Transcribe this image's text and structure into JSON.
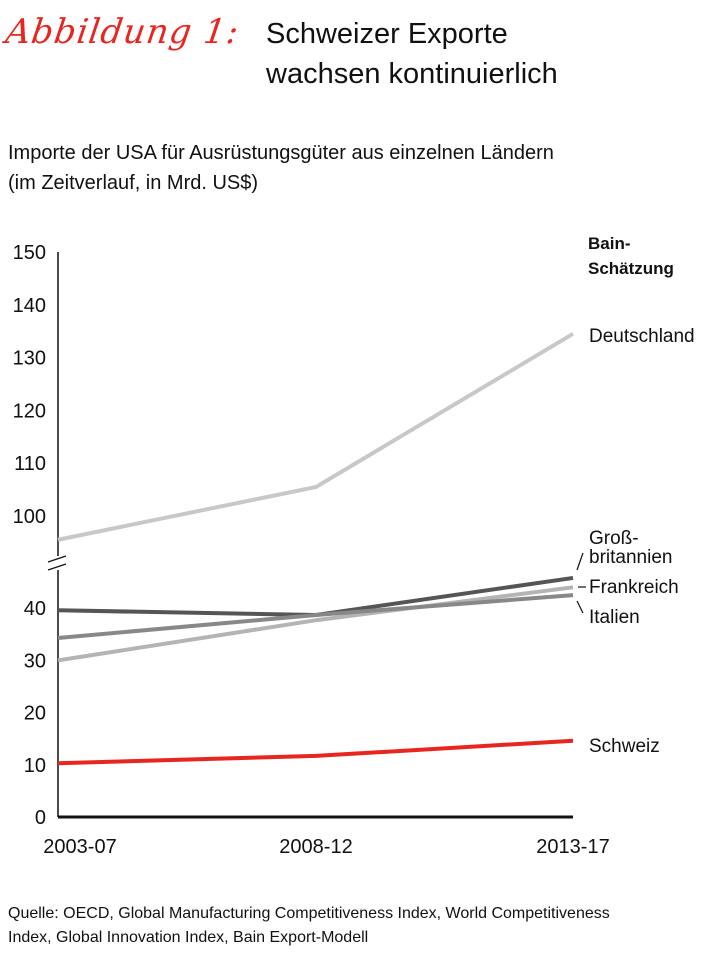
{
  "figure_label": "Abbildung 1:",
  "title_line1": "Schweizer Exporte",
  "title_line2": "wachsen kontinuierlich",
  "subtitle_line1": "Importe der USA für Ausrüstungsgüter aus einzelnen Ländern",
  "subtitle_line2": "(im Zeitverlauf, in Mrd. US$)",
  "source_line1": "Quelle: OECD, Global Manufacturing Competitiveness Index, World Competitiveness",
  "source_line2": "Index, Global Innovation Index, Bain Export-Modell",
  "chart_data": {
    "type": "line",
    "x": [
      "2003-07",
      "2008-12",
      "2013-17"
    ],
    "ylabel": "Mrd. US$",
    "ylim": [
      0,
      150
    ],
    "axis_break": [
      50,
      95
    ],
    "yticks": [
      0,
      10,
      20,
      30,
      40,
      100,
      110,
      120,
      130,
      140,
      150
    ],
    "annotation_line1": "Bain-",
    "annotation_line2": "Schätzung",
    "series": [
      {
        "name": "Deutschland",
        "values": [
          95.5,
          105.5,
          134.5
        ],
        "color": "#c8c8c8"
      },
      {
        "name": "Groß-britannien",
        "label_line1": "Groß-",
        "label_line2": "britannien",
        "values": [
          39.6,
          38.7,
          45.8
        ],
        "color": "#555555"
      },
      {
        "name": "Frankreich",
        "values": [
          30.0,
          37.7,
          44.0
        ],
        "color": "#b4b4b4"
      },
      {
        "name": "Italien",
        "values": [
          34.3,
          38.7,
          42.5
        ],
        "color": "#888888"
      },
      {
        "name": "Schweiz",
        "values": [
          10.3,
          11.7,
          14.6
        ],
        "color": "#e8251f"
      }
    ]
  }
}
